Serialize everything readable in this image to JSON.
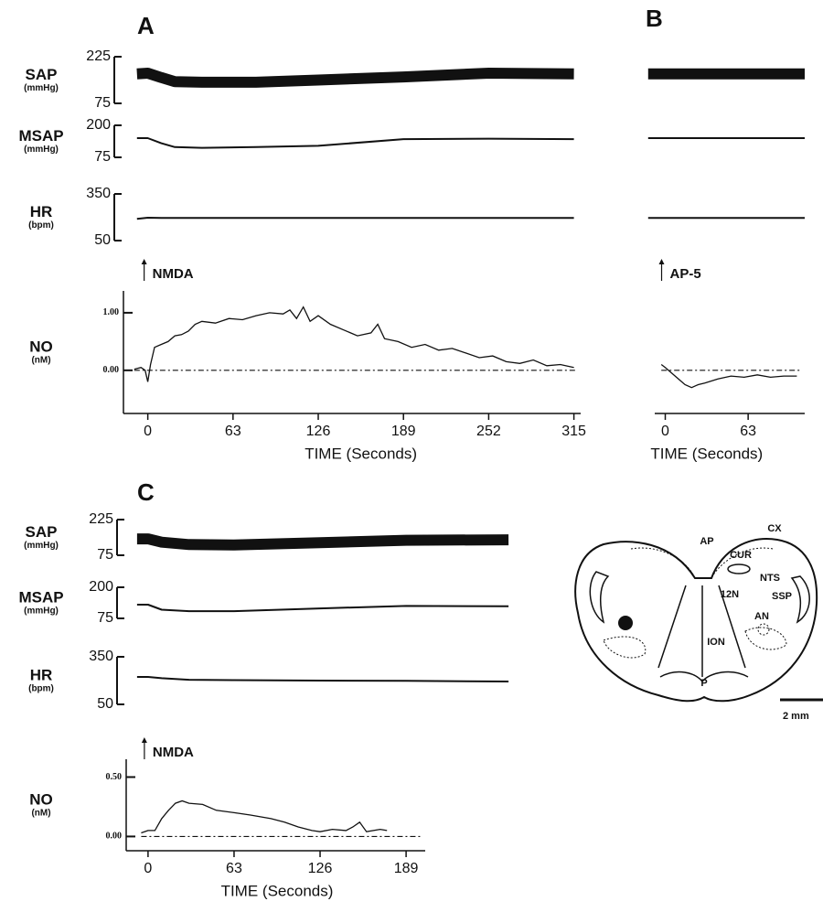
{
  "chart_data": [
    {
      "type": "line",
      "label": "A",
      "annotation": "NMDA",
      "traces": [
        {
          "name": "SAP",
          "unit": "(mmHg)",
          "ylim": [
            75,
            225
          ],
          "yticks": [
            75,
            225
          ],
          "x": [
            -8,
            0,
            10,
            20,
            40,
            80,
            126,
            189,
            252,
            315
          ],
          "values": [
            170,
            172,
            158,
            145,
            143,
            143,
            150,
            160,
            172,
            170
          ]
        },
        {
          "name": "MSAP",
          "unit": "(mmHg)",
          "ylim": [
            75,
            200
          ],
          "yticks": [
            75,
            200
          ],
          "x": [
            -8,
            0,
            10,
            20,
            40,
            80,
            126,
            189,
            252,
            315
          ],
          "values": [
            150,
            150,
            130,
            115,
            112,
            115,
            120,
            146,
            148,
            146
          ]
        },
        {
          "name": "HR",
          "unit": "(bpm)",
          "ylim": [
            50,
            350
          ],
          "yticks": [
            50,
            350
          ],
          "x": [
            -8,
            0,
            10,
            20,
            40,
            80,
            126,
            189,
            252,
            315
          ],
          "values": [
            190,
            197,
            195,
            195,
            195,
            195,
            195,
            195,
            195,
            195
          ]
        }
      ],
      "no": {
        "name": "NO",
        "unit": "(nM)",
        "ylim": [
          -0.75,
          1.38
        ],
        "yticks": [
          {
            "value": 0,
            "label": "0.00"
          },
          {
            "value": 1,
            "label": "1.00"
          }
        ],
        "xlim": [
          -18,
          320
        ],
        "xticks": [
          0,
          63,
          126,
          189,
          252,
          315
        ],
        "xlabel": "TIME (Seconds)",
        "x": [
          -10,
          -5,
          -2,
          0,
          2,
          5,
          10,
          15,
          20,
          25,
          30,
          35,
          40,
          50,
          60,
          70,
          80,
          90,
          100,
          105,
          110,
          115,
          120,
          126,
          135,
          145,
          155,
          165,
          170,
          175,
          185,
          195,
          205,
          215,
          225,
          235,
          245,
          255,
          265,
          275,
          285,
          295,
          305,
          315
        ],
        "values": [
          0.02,
          0.05,
          0,
          -0.2,
          0.1,
          0.4,
          0.45,
          0.5,
          0.6,
          0.62,
          0.68,
          0.8,
          0.85,
          0.82,
          0.9,
          0.88,
          0.95,
          1.0,
          0.98,
          1.05,
          0.9,
          1.1,
          0.85,
          0.95,
          0.8,
          0.7,
          0.6,
          0.65,
          0.8,
          0.55,
          0.5,
          0.4,
          0.45,
          0.35,
          0.38,
          0.3,
          0.22,
          0.25,
          0.15,
          0.12,
          0.18,
          0.08,
          0.1,
          0.05
        ]
      }
    },
    {
      "type": "line",
      "label": "B",
      "annotation": "AP-5",
      "traces": [
        {
          "ylim": [
            75,
            225
          ],
          "x": [
            -13,
            106
          ],
          "values": [
            170,
            170
          ]
        },
        {
          "ylim": [
            75,
            200
          ],
          "x": [
            -13,
            106
          ],
          "values": [
            150,
            150
          ]
        },
        {
          "ylim": [
            50,
            350
          ],
          "x": [
            -13,
            106
          ],
          "values": [
            195,
            195
          ]
        }
      ],
      "no": {
        "ylim": [
          -0.75,
          1.38
        ],
        "xlim": [
          -8,
          106
        ],
        "xticks": [
          0,
          63
        ],
        "xlabel": "TIME (Seconds)",
        "x": [
          -3,
          0,
          5,
          10,
          15,
          20,
          25,
          30,
          40,
          50,
          60,
          70,
          80,
          90,
          100
        ],
        "values": [
          0.1,
          0.05,
          -0.05,
          -0.15,
          -0.25,
          -0.3,
          -0.25,
          -0.22,
          -0.15,
          -0.1,
          -0.12,
          -0.08,
          -0.12,
          -0.1,
          -0.1
        ]
      }
    },
    {
      "type": "line",
      "label": "C",
      "annotation": "NMDA",
      "traces": [
        {
          "name": "SAP",
          "unit": "(mmHg)",
          "ylim": [
            75,
            225
          ],
          "yticks": [
            75,
            225
          ],
          "x": [
            -8,
            0,
            10,
            30,
            63,
            126,
            189,
            264
          ],
          "values": [
            144,
            144,
            130,
            120,
            118,
            128,
            138,
            140
          ]
        },
        {
          "name": "MSAP",
          "unit": "(mmHg)",
          "ylim": [
            75,
            200
          ],
          "yticks": [
            75,
            200
          ],
          "x": [
            -8,
            0,
            10,
            30,
            63,
            126,
            189,
            264
          ],
          "values": [
            130,
            130,
            110,
            104,
            104,
            115,
            125,
            124
          ]
        },
        {
          "name": "HR",
          "unit": "(bpm)",
          "ylim": [
            50,
            350
          ],
          "yticks": [
            50,
            350
          ],
          "x": [
            -8,
            0,
            10,
            30,
            63,
            126,
            189,
            264
          ],
          "values": [
            223,
            223,
            215,
            205,
            203,
            200,
            198,
            194
          ]
        }
      ],
      "no": {
        "name": "NO",
        "unit": "(nM)",
        "ylim": [
          -0.12,
          0.65
        ],
        "yticks": [
          {
            "value": 0,
            "label": "0.00"
          },
          {
            "value": 0.5,
            "label": "0.50"
          }
        ],
        "xlim": [
          -16,
          203
        ],
        "xticks": [
          0,
          63,
          126,
          189
        ],
        "xlabel": "TIME (Seconds)",
        "x": [
          -5,
          0,
          5,
          10,
          15,
          20,
          25,
          30,
          40,
          50,
          63,
          75,
          90,
          100,
          110,
          120,
          126,
          135,
          145,
          150,
          155,
          160,
          170,
          175
        ],
        "values": [
          0.03,
          0.05,
          0.05,
          0.15,
          0.22,
          0.28,
          0.3,
          0.28,
          0.27,
          0.22,
          0.2,
          0.18,
          0.15,
          0.12,
          0.08,
          0.05,
          0.04,
          0.06,
          0.05,
          0.08,
          0.12,
          0.04,
          0.06,
          0.05
        ]
      }
    }
  ],
  "diagram": {
    "labels": [
      "AP",
      "CX",
      "CUR",
      "NTS",
      "12N",
      "SSP",
      "AN",
      "ION",
      "P"
    ],
    "scale": "2 mm"
  }
}
